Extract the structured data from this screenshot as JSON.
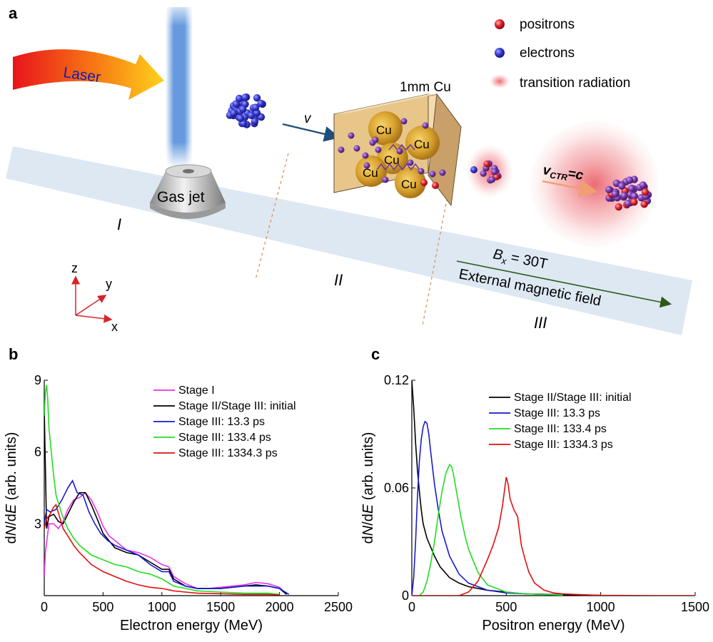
{
  "figure": {
    "panel_a": {
      "letter": "a",
      "laser_label": "Laser",
      "gas_jet_label": "Gas jet",
      "target_label": "1mm Cu",
      "cu_atom_label": "Cu",
      "velocity_label": "v",
      "ctr_velocity_label": "v",
      "ctr_velocity_sub": "CTR",
      "ctr_velocity_rhs": "=c",
      "legend_positrons": "positrons",
      "legend_electrons": "electrons",
      "legend_tr": "transition radiation",
      "stage_I": "I",
      "stage_II": "II",
      "stage_III": "III",
      "field_label_lhs": "B",
      "field_label_sub": "x",
      "field_label_rhs": " = 30T",
      "field_caption": "External magnetic field",
      "axis_z": "z",
      "axis_y": "y",
      "axis_x": "x",
      "colors": {
        "positron": "#d81f26",
        "electron": "#2b2fbf",
        "beam": "#dde8f3",
        "arrow": "#1f4e79",
        "field_arrow": "#2d5a1b",
        "cube": "#e8c68a"
      }
    },
    "panel_b": {
      "letter": "b"
    },
    "panel_c": {
      "letter": "c"
    }
  },
  "chart_data": [
    {
      "type": "line",
      "xlabel": "Electron energy (MeV)",
      "ylabel": "dN/dE (arb. units)",
      "xlim": [
        0,
        2500
      ],
      "ylim": [
        0,
        9
      ],
      "xticks": [
        "0",
        "500",
        "1000",
        "1500",
        "2000",
        "2500"
      ],
      "yticks": [
        "3",
        "6",
        "9"
      ],
      "legend_placement": "top-right",
      "grid": false,
      "series": [
        {
          "name": "Stage I",
          "color": "#e633e6",
          "x": [
            0,
            10,
            40,
            80,
            120,
            160,
            200,
            250,
            300,
            350,
            400,
            450,
            500,
            550,
            600,
            700,
            800,
            900,
            1000,
            1060,
            1100,
            1200,
            1300,
            1400,
            1500,
            1600,
            1700,
            1800,
            1900,
            2000,
            2060
          ],
          "y": [
            0.8,
            1.8,
            3.0,
            3.0,
            2.8,
            3.1,
            3.6,
            4.0,
            4.1,
            4.3,
            4.0,
            3.5,
            2.9,
            2.5,
            2.3,
            1.9,
            1.8,
            1.6,
            1.3,
            1.2,
            0.8,
            0.5,
            0.3,
            0.3,
            0.35,
            0.4,
            0.45,
            0.55,
            0.5,
            0.35,
            0.05
          ]
        },
        {
          "name": "Stage II/Stage III: initial",
          "color": "#000000",
          "x": [
            0,
            8,
            20,
            40,
            80,
            120,
            160,
            200,
            250,
            300,
            350,
            400,
            450,
            500,
            550,
            600,
            700,
            800,
            900,
            1000,
            1060,
            1100,
            1200,
            1300,
            1400,
            1500,
            1600,
            1700,
            1800,
            1900,
            2000,
            2060
          ],
          "y": [
            7.8,
            5.8,
            2.8,
            3.3,
            3.4,
            3.1,
            3.0,
            3.4,
            3.9,
            4.3,
            4.3,
            3.8,
            3.2,
            2.6,
            2.3,
            2.0,
            1.8,
            1.7,
            1.4,
            1.1,
            1.1,
            0.7,
            0.4,
            0.3,
            0.3,
            0.3,
            0.35,
            0.4,
            0.45,
            0.4,
            0.3,
            0.05
          ]
        },
        {
          "name": "Stage III: 13.3 ps",
          "color": "#1a1acc",
          "x": [
            0,
            20,
            50,
            100,
            150,
            200,
            240,
            280,
            330,
            380,
            430,
            480,
            540,
            600,
            700,
            800,
            900,
            1000,
            1060,
            1100,
            1200,
            1300,
            1400,
            1500,
            1600,
            1700,
            1800,
            1900,
            2000,
            2080
          ],
          "y": [
            3.0,
            3.6,
            3.5,
            3.6,
            4.0,
            4.5,
            4.8,
            4.3,
            4.2,
            3.5,
            3.0,
            2.6,
            2.3,
            2.1,
            1.9,
            1.7,
            1.3,
            1.0,
            1.0,
            0.6,
            0.4,
            0.3,
            0.3,
            0.3,
            0.35,
            0.4,
            0.4,
            0.4,
            0.3,
            0.05
          ]
        },
        {
          "name": "Stage III: 133.4 ps",
          "color": "#22dd22",
          "x": [
            0,
            10,
            20,
            30,
            40,
            60,
            80,
            100,
            150,
            200,
            250,
            300,
            400,
            500,
            600,
            700,
            800,
            900,
            1000,
            1100,
            1200,
            1300,
            1500,
            1700,
            1900,
            2000
          ],
          "y": [
            7.5,
            8.5,
            8.8,
            8.2,
            7.0,
            6.0,
            5.0,
            4.2,
            3.4,
            2.8,
            2.4,
            2.1,
            1.7,
            1.5,
            1.3,
            1.2,
            1.0,
            0.9,
            0.7,
            0.4,
            0.3,
            0.2,
            0.15,
            0.1,
            0.1,
            0.05
          ]
        },
        {
          "name": "Stage III: 1334.3 ps",
          "color": "#e01010",
          "x": [
            0,
            20,
            50,
            80,
            100,
            130,
            160,
            200,
            250,
            300,
            400,
            500,
            600,
            700,
            800,
            900,
            1000,
            1100,
            1200,
            1300,
            1500,
            1700,
            1900,
            2000
          ],
          "y": [
            2.8,
            3.2,
            3.4,
            3.7,
            3.8,
            3.3,
            2.8,
            2.5,
            2.1,
            1.8,
            1.3,
            1.0,
            0.8,
            0.6,
            0.45,
            0.35,
            0.3,
            0.2,
            0.15,
            0.1,
            0.08,
            0.05,
            0.05,
            0.03
          ]
        }
      ]
    },
    {
      "type": "line",
      "xlabel": "Positron energy (MeV)",
      "ylabel": "dN/dE (arb. units)",
      "xlim": [
        0,
        1500
      ],
      "ylim": [
        0,
        0.12
      ],
      "xticks": [
        "0",
        "500",
        "1000",
        "1500"
      ],
      "yticks": [
        "0",
        "0.06",
        "0.12"
      ],
      "legend_placement": "top-right",
      "grid": false,
      "series": [
        {
          "name": "Stage II/Stage III: initial",
          "color": "#000000",
          "x": [
            0,
            10,
            20,
            30,
            40,
            50,
            60,
            80,
            100,
            120,
            150,
            200,
            250,
            300,
            400,
            500,
            600,
            700,
            800,
            1000
          ],
          "y": [
            0.12,
            0.105,
            0.085,
            0.07,
            0.058,
            0.048,
            0.04,
            0.032,
            0.027,
            0.022,
            0.016,
            0.01,
            0.007,
            0.005,
            0.003,
            0.002,
            0.001,
            0.0008,
            0.0005,
            0.0002
          ]
        },
        {
          "name": "Stage III: 13.3 ps",
          "color": "#1a1acc",
          "x": [
            0,
            10,
            20,
            30,
            40,
            50,
            60,
            70,
            80,
            90,
            100,
            120,
            140,
            160,
            200,
            250,
            300,
            400,
            500,
            600,
            800
          ],
          "y": [
            0.0,
            0.01,
            0.03,
            0.055,
            0.075,
            0.087,
            0.094,
            0.097,
            0.096,
            0.09,
            0.08,
            0.062,
            0.048,
            0.036,
            0.022,
            0.012,
            0.007,
            0.003,
            0.0015,
            0.001,
            0.0003
          ]
        },
        {
          "name": "Stage III: 133.4 ps",
          "color": "#22dd22",
          "x": [
            0,
            40,
            60,
            80,
            100,
            120,
            140,
            160,
            180,
            200,
            210,
            220,
            240,
            260,
            280,
            300,
            350,
            400,
            500,
            600,
            800
          ],
          "y": [
            0.0,
            0.0,
            0.002,
            0.008,
            0.018,
            0.03,
            0.045,
            0.058,
            0.068,
            0.073,
            0.072,
            0.068,
            0.056,
            0.044,
            0.034,
            0.026,
            0.013,
            0.006,
            0.002,
            0.001,
            0.0003
          ]
        },
        {
          "name": "Stage III: 1334.3 ps",
          "color": "#e01010",
          "x": [
            0,
            250,
            300,
            350,
            400,
            430,
            460,
            480,
            500,
            510,
            520,
            540,
            560,
            570,
            580,
            600,
            620,
            650,
            700,
            750,
            800,
            900,
            1000,
            1100,
            1300,
            1500
          ],
          "y": [
            0.0,
            0.0,
            0.002,
            0.008,
            0.02,
            0.028,
            0.038,
            0.05,
            0.066,
            0.062,
            0.054,
            0.048,
            0.044,
            0.036,
            0.028,
            0.02,
            0.013,
            0.007,
            0.003,
            0.0015,
            0.001,
            0.0005,
            0.0002,
            0.0001,
            0.0,
            0.0
          ]
        }
      ]
    }
  ]
}
